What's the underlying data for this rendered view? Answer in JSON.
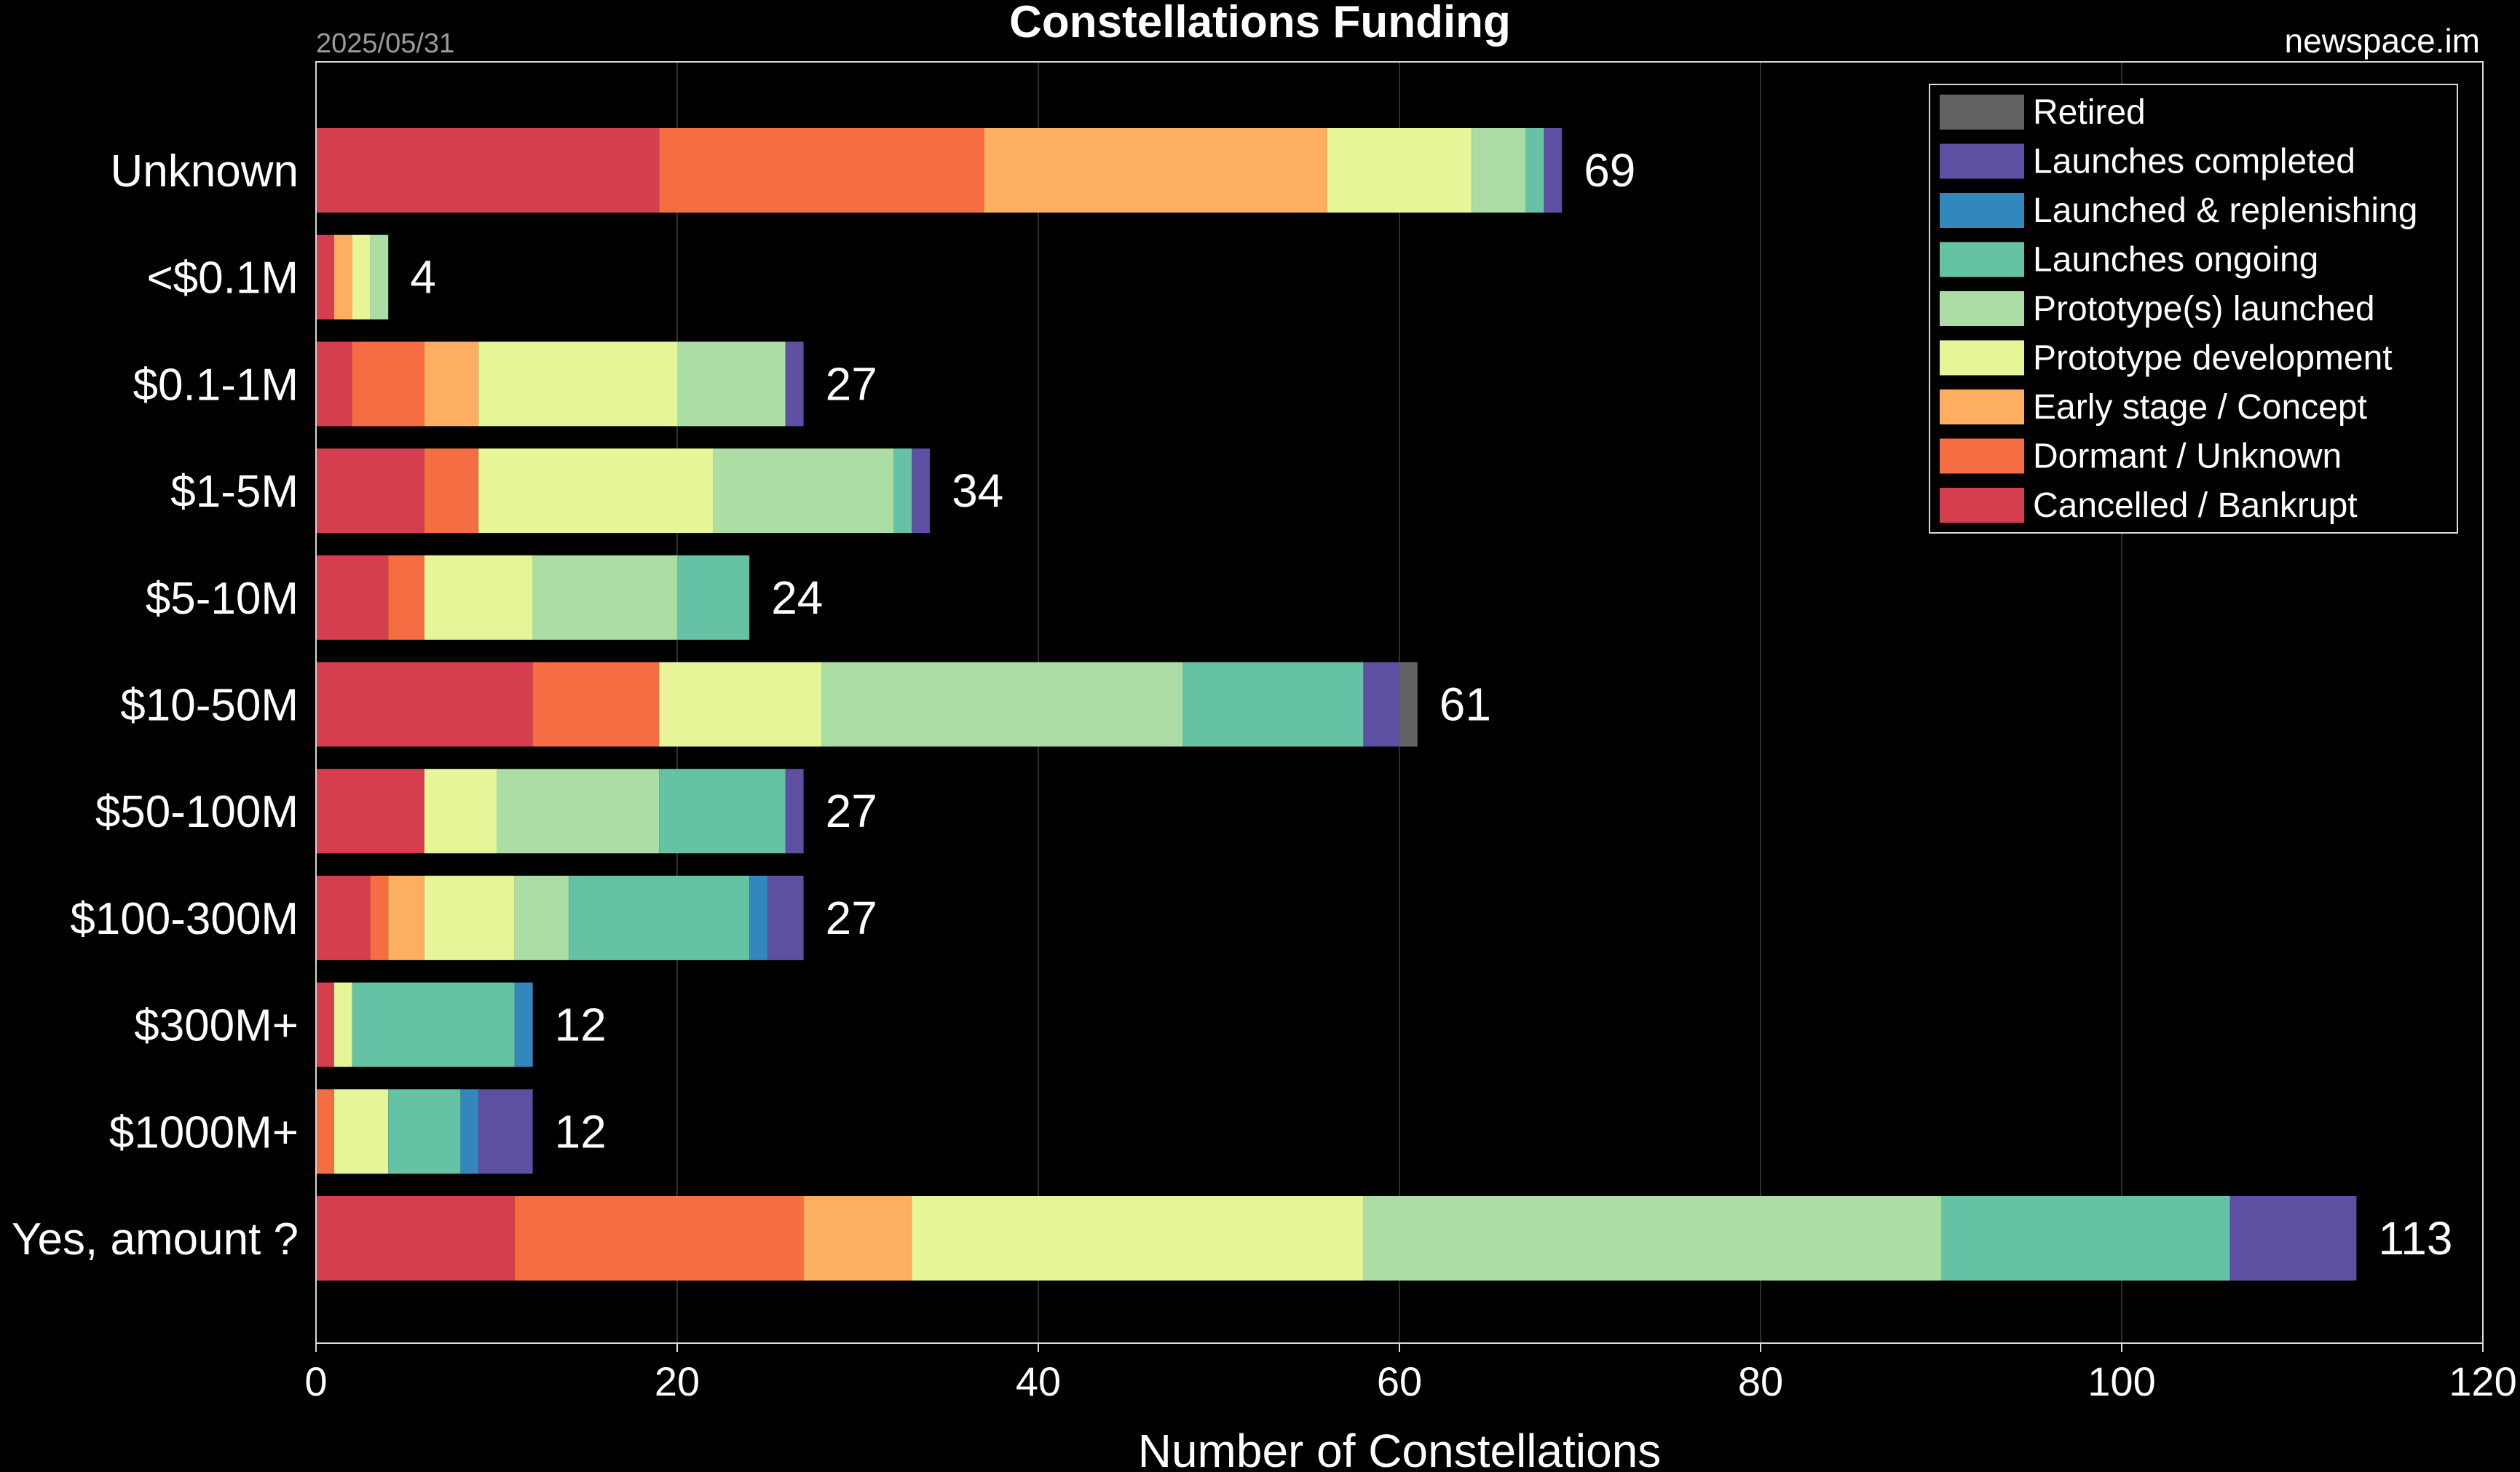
{
  "header": {
    "title": "Constellations Funding",
    "date": "2025/05/31",
    "source": "newspace.im"
  },
  "chart_data": {
    "type": "bar",
    "orientation": "horizontal",
    "stacked": true,
    "title": "Constellations Funding",
    "xlabel": "Number of Constellations",
    "ylabel": "",
    "xlim": [
      0,
      120
    ],
    "xticks": [
      0,
      20,
      40,
      60,
      80,
      100,
      120
    ],
    "grid": "vertical",
    "legend_position": "top-right",
    "categories": [
      "Unknown",
      "<$0.1M",
      "$0.1-1M",
      "$1-5M",
      "$5-10M",
      "$10-50M",
      "$50-100M",
      "$100-300M",
      "$300M+",
      "$1000M+",
      "Yes, amount ?"
    ],
    "series": [
      {
        "name": "Cancelled / Bankrupt",
        "color": "#d53e4f",
        "values": [
          19,
          1,
          2,
          6,
          4,
          12,
          6,
          3,
          1,
          0,
          11
        ]
      },
      {
        "name": "Dormant / Unknown",
        "color": "#f46d43",
        "values": [
          18,
          0,
          4,
          3,
          2,
          7,
          0,
          1,
          0,
          1,
          16
        ]
      },
      {
        "name": "Early stage / Concept",
        "color": "#fdae61",
        "values": [
          19,
          1,
          3,
          0,
          0,
          0,
          0,
          2,
          0,
          0,
          6
        ]
      },
      {
        "name": "Prototype development",
        "color": "#e6f598",
        "values": [
          8,
          1,
          11,
          13,
          6,
          9,
          4,
          5,
          1,
          3,
          25
        ]
      },
      {
        "name": "Prototype(s) launched",
        "color": "#abdda4",
        "values": [
          3,
          1,
          6,
          10,
          8,
          20,
          9,
          3,
          0,
          0,
          32
        ]
      },
      {
        "name": "Launches ongoing",
        "color": "#66c2a5",
        "values": [
          1,
          0,
          0,
          1,
          4,
          10,
          7,
          10,
          9,
          4,
          16
        ]
      },
      {
        "name": "Launched & replenishing",
        "color": "#3288bd",
        "values": [
          0,
          0,
          0,
          0,
          0,
          0,
          0,
          1,
          1,
          1,
          0
        ]
      },
      {
        "name": "Launches completed",
        "color": "#5e4fa2",
        "values": [
          1,
          0,
          1,
          1,
          0,
          2,
          1,
          2,
          0,
          3,
          7
        ]
      },
      {
        "name": "Retired",
        "color": "#636363",
        "values": [
          0,
          0,
          0,
          0,
          0,
          1,
          0,
          0,
          0,
          0,
          0
        ]
      }
    ],
    "totals": [
      69,
      4,
      27,
      34,
      24,
      61,
      27,
      27,
      12,
      12,
      113
    ]
  }
}
